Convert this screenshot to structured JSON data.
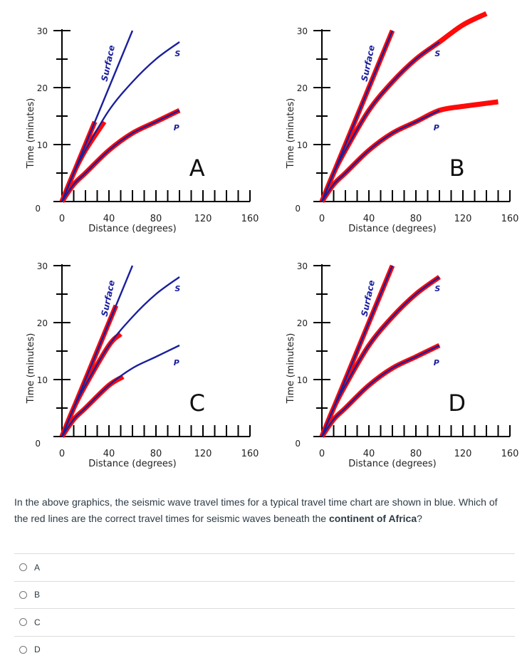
{
  "chart_data": [
    {
      "type": "line",
      "panel_letter": "A",
      "xlabel": "Distance (degrees)",
      "ylabel": "Time (minutes)",
      "x_ticks": [
        "0",
        "40",
        "80",
        "120",
        "160"
      ],
      "y_ticks": [
        "0",
        "10",
        "20",
        "30"
      ],
      "xlim": [
        0,
        160
      ],
      "ylim": [
        0,
        30
      ],
      "series": [
        {
          "name": "Surface",
          "kind": "blue",
          "x": [
            0,
            10,
            20,
            30,
            40,
            50,
            60
          ],
          "y": [
            0,
            5,
            10,
            15,
            20,
            25,
            30
          ]
        },
        {
          "name": "S",
          "kind": "blue",
          "x": [
            0,
            10,
            20,
            40,
            60,
            80,
            100
          ],
          "y": [
            0,
            5,
            9,
            16,
            21,
            25,
            28
          ]
        },
        {
          "name": "P",
          "kind": "blue",
          "x": [
            0,
            10,
            20,
            40,
            60,
            80,
            100
          ],
          "y": [
            0,
            3,
            5,
            9,
            12,
            14,
            16
          ]
        },
        {
          "name": "Surface (red)",
          "kind": "red",
          "x": [
            0,
            28
          ],
          "y": [
            0,
            14
          ]
        },
        {
          "name": "S (red)",
          "kind": "red",
          "x": [
            0,
            10,
            20,
            36
          ],
          "y": [
            0,
            5,
            9,
            14
          ]
        },
        {
          "name": "P (red)",
          "kind": "red",
          "x": [
            0,
            10,
            20,
            40,
            60,
            80,
            100
          ],
          "y": [
            0,
            3,
            5,
            9,
            12,
            14,
            16
          ]
        }
      ]
    },
    {
      "type": "line",
      "panel_letter": "B",
      "xlabel": "Distance (degrees)",
      "ylabel": "Time (minutes)",
      "x_ticks": [
        "0",
        "40",
        "80",
        "120",
        "160"
      ],
      "y_ticks": [
        "0",
        "10",
        "20",
        "30"
      ],
      "xlim": [
        0,
        160
      ],
      "ylim": [
        0,
        30
      ],
      "series": [
        {
          "name": "Surface",
          "kind": "blue",
          "x": [
            0,
            10,
            20,
            30,
            40,
            50,
            60
          ],
          "y": [
            0,
            5,
            10,
            15,
            20,
            25,
            30
          ]
        },
        {
          "name": "S",
          "kind": "blue",
          "x": [
            0,
            10,
            20,
            40,
            60,
            80,
            100
          ],
          "y": [
            0,
            5,
            9,
            16,
            21,
            25,
            28
          ]
        },
        {
          "name": "P",
          "kind": "blue",
          "x": [
            0,
            10,
            20,
            40,
            60,
            80,
            100
          ],
          "y": [
            0,
            3,
            5,
            9,
            12,
            14,
            16
          ]
        },
        {
          "name": "Surface (red)",
          "kind": "red",
          "x": [
            0,
            10,
            20,
            30,
            40,
            50,
            60
          ],
          "y": [
            0,
            5,
            10,
            15,
            20,
            25,
            30
          ]
        },
        {
          "name": "S (red)",
          "kind": "red",
          "x": [
            0,
            10,
            20,
            40,
            60,
            80,
            100,
            120,
            140
          ],
          "y": [
            0,
            5,
            9,
            16,
            21,
            25,
            28,
            31,
            33
          ]
        },
        {
          "name": "P (red)",
          "kind": "red",
          "x": [
            0,
            10,
            20,
            40,
            60,
            80,
            100,
            120,
            150
          ],
          "y": [
            0,
            3,
            5,
            9,
            12,
            14,
            16,
            16.7,
            17.5
          ]
        }
      ]
    },
    {
      "type": "line",
      "panel_letter": "C",
      "xlabel": "Distance (degrees)",
      "ylabel": "Time (minutes)",
      "x_ticks": [
        "0",
        "40",
        "80",
        "120",
        "160"
      ],
      "y_ticks": [
        "0",
        "10",
        "20",
        "30"
      ],
      "xlim": [
        0,
        160
      ],
      "ylim": [
        0,
        30
      ],
      "series": [
        {
          "name": "Surface",
          "kind": "blue",
          "x": [
            0,
            10,
            20,
            30,
            40,
            50,
            60
          ],
          "y": [
            0,
            5,
            10,
            15,
            20,
            25,
            30
          ]
        },
        {
          "name": "S",
          "kind": "blue",
          "x": [
            0,
            10,
            20,
            40,
            60,
            80,
            100
          ],
          "y": [
            0,
            5,
            9,
            16,
            21,
            25,
            28
          ]
        },
        {
          "name": "P",
          "kind": "blue",
          "x": [
            0,
            10,
            20,
            40,
            60,
            80,
            100
          ],
          "y": [
            0,
            3,
            5,
            9,
            12,
            14,
            16
          ]
        },
        {
          "name": "Surface (red)",
          "kind": "red",
          "x": [
            0,
            46
          ],
          "y": [
            0,
            23
          ]
        },
        {
          "name": "S (red)",
          "kind": "red",
          "x": [
            0,
            10,
            20,
            40,
            50
          ],
          "y": [
            0,
            5,
            9,
            16,
            18
          ]
        },
        {
          "name": "P (red)",
          "kind": "red",
          "x": [
            0,
            10,
            20,
            40,
            52
          ],
          "y": [
            0,
            3,
            5,
            9,
            10.5
          ]
        }
      ]
    },
    {
      "type": "line",
      "panel_letter": "D",
      "xlabel": "Distance (degrees)",
      "ylabel": "Time (minutes)",
      "x_ticks": [
        "0",
        "40",
        "80",
        "120",
        "160"
      ],
      "y_ticks": [
        "0",
        "10",
        "20",
        "30"
      ],
      "xlim": [
        0,
        160
      ],
      "ylim": [
        0,
        30
      ],
      "series": [
        {
          "name": "Surface",
          "kind": "blue",
          "x": [
            0,
            10,
            20,
            30,
            40,
            50,
            60
          ],
          "y": [
            0,
            5,
            10,
            15,
            20,
            25,
            30
          ]
        },
        {
          "name": "S",
          "kind": "blue",
          "x": [
            0,
            10,
            20,
            40,
            60,
            80,
            100
          ],
          "y": [
            0,
            5,
            9,
            16,
            21,
            25,
            28
          ]
        },
        {
          "name": "P",
          "kind": "blue",
          "x": [
            0,
            10,
            20,
            40,
            60,
            80,
            100
          ],
          "y": [
            0,
            3,
            5,
            9,
            12,
            14,
            16
          ]
        },
        {
          "name": "Surface (red)",
          "kind": "red",
          "x": [
            0,
            10,
            20,
            30,
            40,
            50,
            60
          ],
          "y": [
            0,
            5,
            10,
            15,
            20,
            25,
            30
          ]
        },
        {
          "name": "S (red)",
          "kind": "red",
          "x": [
            0,
            10,
            20,
            40,
            60,
            80,
            100
          ],
          "y": [
            0,
            5,
            9,
            16,
            21,
            25,
            28
          ]
        },
        {
          "name": "P (red)",
          "kind": "red",
          "x": [
            0,
            10,
            20,
            40,
            60,
            80,
            100
          ],
          "y": [
            0,
            3,
            5,
            9,
            12,
            14,
            16
          ]
        }
      ]
    }
  ],
  "question": {
    "text_before": "In the above graphics, the seismic wave travel times for a typical travel time chart are shown in blue. Which of the red lines are the correct travel times for seismic waves beneath the ",
    "text_bold": "continent of Africa",
    "text_after": "?"
  },
  "options": [
    {
      "label": "A"
    },
    {
      "label": "B"
    },
    {
      "label": "C"
    },
    {
      "label": "D"
    }
  ],
  "colors": {
    "blue": "#1a1f9c",
    "red": "#ff0a0a",
    "axis": "#000000"
  }
}
